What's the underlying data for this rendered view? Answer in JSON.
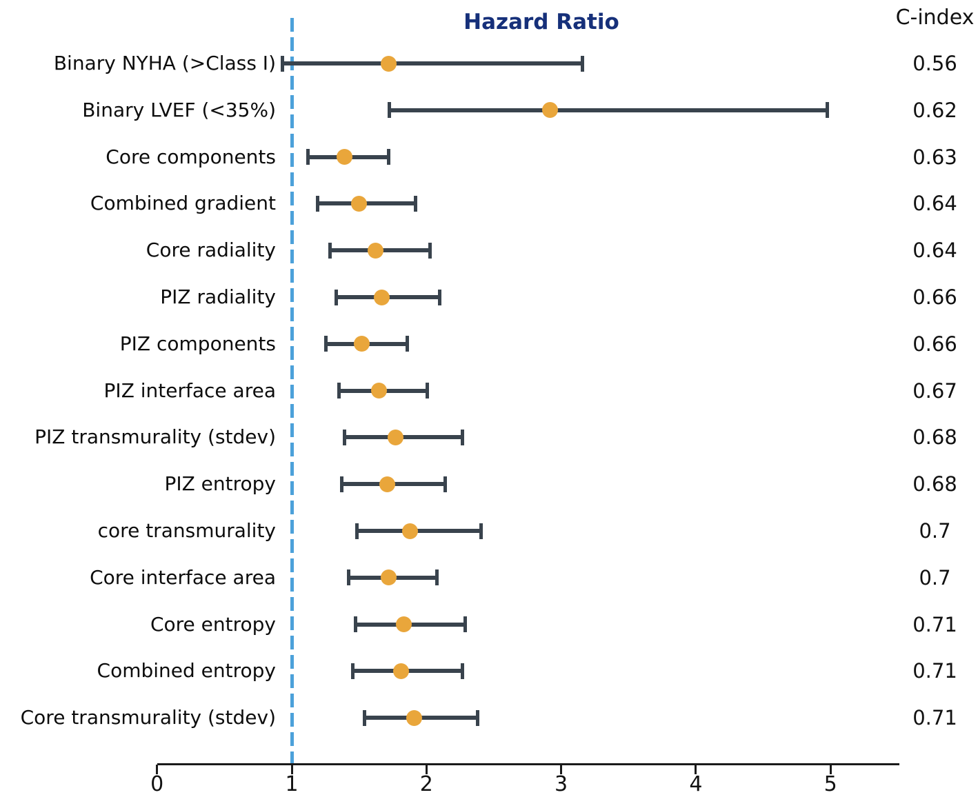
{
  "chart_data": {
    "type": "forest",
    "title": "Hazard Ratio",
    "cindex_header": "C-index",
    "xlabel": "",
    "xlim": [
      0,
      5.5
    ],
    "xticks": [
      0,
      1,
      2,
      3,
      4,
      5
    ],
    "xtick_labels": [
      "0",
      "1",
      "2",
      "3",
      "4",
      "5"
    ],
    "reference_line_x": 1,
    "grid": false,
    "rows": [
      {
        "label": "Binary NYHA (>Class I)",
        "hr": 1.72,
        "ci_low": 0.93,
        "ci_high": 3.16,
        "c_index": "0.56"
      },
      {
        "label": "Binary LVEF (<35%)",
        "hr": 2.92,
        "ci_low": 1.72,
        "ci_high": 4.98,
        "c_index": "0.62"
      },
      {
        "label": "Core components",
        "hr": 1.39,
        "ci_low": 1.12,
        "ci_high": 1.72,
        "c_index": "0.63"
      },
      {
        "label": "Combined gradient",
        "hr": 1.5,
        "ci_low": 1.19,
        "ci_high": 1.92,
        "c_index": "0.64"
      },
      {
        "label": "Core radiality",
        "hr": 1.62,
        "ci_low": 1.28,
        "ci_high": 2.03,
        "c_index": "0.64"
      },
      {
        "label": "PIZ radiality",
        "hr": 1.67,
        "ci_low": 1.33,
        "ci_high": 2.1,
        "c_index": "0.66"
      },
      {
        "label": "PIZ components",
        "hr": 1.52,
        "ci_low": 1.25,
        "ci_high": 1.86,
        "c_index": "0.66"
      },
      {
        "label": "PIZ interface area",
        "hr": 1.65,
        "ci_low": 1.35,
        "ci_high": 2.01,
        "c_index": "0.67"
      },
      {
        "label": "PIZ transmurality (stdev)",
        "hr": 1.77,
        "ci_low": 1.39,
        "ci_high": 2.27,
        "c_index": "0.68"
      },
      {
        "label": "PIZ entropy",
        "hr": 1.71,
        "ci_low": 1.37,
        "ci_high": 2.14,
        "c_index": "0.68"
      },
      {
        "label": "core transmurality",
        "hr": 1.88,
        "ci_low": 1.48,
        "ci_high": 2.41,
        "c_index": "0.7"
      },
      {
        "label": "Core interface area",
        "hr": 1.72,
        "ci_low": 1.42,
        "ci_high": 2.08,
        "c_index": "0.7"
      },
      {
        "label": "Core entropy",
        "hr": 1.83,
        "ci_low": 1.47,
        "ci_high": 2.29,
        "c_index": "0.71"
      },
      {
        "label": "Combined entropy",
        "hr": 1.81,
        "ci_low": 1.45,
        "ci_high": 2.27,
        "c_index": "0.71"
      },
      {
        "label": "Core transmurality (stdev)",
        "hr": 1.91,
        "ci_low": 1.54,
        "ci_high": 2.38,
        "c_index": "0.71"
      }
    ],
    "colors": {
      "marker": "#E9A63B",
      "error_bar": "#39434D",
      "reference_line": "#4CA1DA",
      "title": "#16307A",
      "text": "#111111",
      "background": "#ffffff"
    }
  }
}
